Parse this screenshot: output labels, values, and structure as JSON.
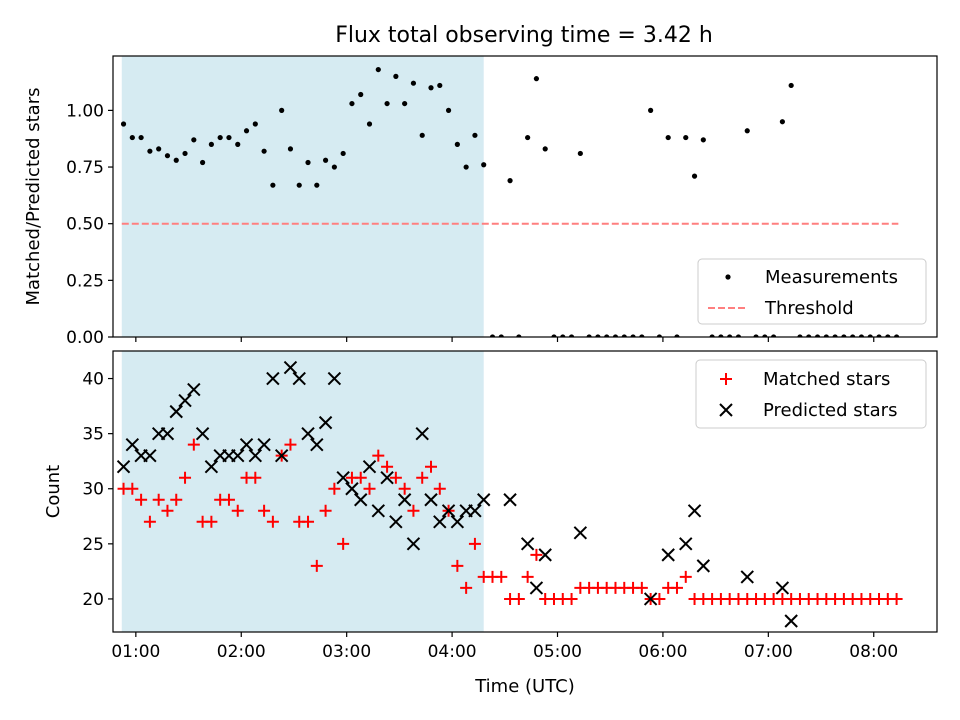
{
  "title": "Flux total observing time = 3.42 h",
  "colors": {
    "shade": "#add8e6",
    "measurement": "#000000",
    "threshold": "#ff7f7f",
    "matched": "#ff0000",
    "predicted": "#000000"
  },
  "chart_data": [
    {
      "type": "scatter",
      "name": "ratio-panel",
      "ylabel": "Matched/Predicted stars",
      "ylim": [
        0,
        1.24
      ],
      "yticks": [
        "0.00",
        "0.25",
        "0.50",
        "0.75",
        "1.00"
      ],
      "xlim": [
        "00:47",
        "08:36"
      ],
      "shaded_interval": [
        "00:52",
        "04:18"
      ],
      "threshold": 0.5,
      "threshold_span": [
        "00:52",
        "08:14"
      ],
      "legend": {
        "position": "lower right",
        "entries": [
          "Measurements",
          "Threshold"
        ]
      },
      "series": [
        {
          "name": "Measurements",
          "marker": "dot",
          "points": [
            [
              "00:53",
              0.94
            ],
            [
              "00:58",
              0.88
            ],
            [
              "01:03",
              0.88
            ],
            [
              "01:08",
              0.82
            ],
            [
              "01:13",
              0.83
            ],
            [
              "01:18",
              0.8
            ],
            [
              "01:23",
              0.78
            ],
            [
              "01:28",
              0.81
            ],
            [
              "01:33",
              0.87
            ],
            [
              "01:38",
              0.77
            ],
            [
              "01:43",
              0.85
            ],
            [
              "01:48",
              0.88
            ],
            [
              "01:53",
              0.88
            ],
            [
              "01:58",
              0.85
            ],
            [
              "02:03",
              0.91
            ],
            [
              "02:08",
              0.94
            ],
            [
              "02:13",
              0.82
            ],
            [
              "02:18",
              0.67
            ],
            [
              "02:23",
              1.0
            ],
            [
              "02:28",
              0.83
            ],
            [
              "02:33",
              0.67
            ],
            [
              "02:38",
              0.77
            ],
            [
              "02:43",
              0.67
            ],
            [
              "02:48",
              0.78
            ],
            [
              "02:53",
              0.75
            ],
            [
              "02:58",
              0.81
            ],
            [
              "03:03",
              1.03
            ],
            [
              "03:08",
              1.07
            ],
            [
              "03:13",
              0.94
            ],
            [
              "03:18",
              1.18
            ],
            [
              "03:23",
              1.03
            ],
            [
              "03:28",
              1.15
            ],
            [
              "03:33",
              1.03
            ],
            [
              "03:38",
              1.12
            ],
            [
              "03:43",
              0.89
            ],
            [
              "03:48",
              1.1
            ],
            [
              "03:53",
              1.11
            ],
            [
              "03:58",
              1.0
            ],
            [
              "04:03",
              0.85
            ],
            [
              "04:08",
              0.75
            ],
            [
              "04:13",
              0.89
            ],
            [
              "04:18",
              0.76
            ],
            [
              "04:23",
              0.0
            ],
            [
              "04:28",
              0.0
            ],
            [
              "04:33",
              0.69
            ],
            [
              "04:38",
              0.0
            ],
            [
              "04:43",
              0.88
            ],
            [
              "04:48",
              1.14
            ],
            [
              "04:53",
              0.83
            ],
            [
              "04:58",
              0.0
            ],
            [
              "05:03",
              0.0
            ],
            [
              "05:08",
              0.0
            ],
            [
              "05:13",
              0.81
            ],
            [
              "05:18",
              0.0
            ],
            [
              "05:23",
              0.0
            ],
            [
              "05:28",
              0.0
            ],
            [
              "05:33",
              0.0
            ],
            [
              "05:38",
              0.0
            ],
            [
              "05:43",
              0.0
            ],
            [
              "05:48",
              0.0
            ],
            [
              "05:53",
              1.0
            ],
            [
              "05:58",
              0.0
            ],
            [
              "06:03",
              0.88
            ],
            [
              "06:08",
              0.0
            ],
            [
              "06:13",
              0.88
            ],
            [
              "06:18",
              0.71
            ],
            [
              "06:23",
              0.87
            ],
            [
              "06:28",
              0.0
            ],
            [
              "06:33",
              0.0
            ],
            [
              "06:38",
              0.0
            ],
            [
              "06:43",
              0.0
            ],
            [
              "06:48",
              0.91
            ],
            [
              "06:53",
              0.0
            ],
            [
              "06:58",
              0.0
            ],
            [
              "07:03",
              0.0
            ],
            [
              "07:08",
              0.95
            ],
            [
              "07:13",
              1.11
            ],
            [
              "07:18",
              0.0
            ],
            [
              "07:23",
              0.0
            ],
            [
              "07:28",
              0.0
            ],
            [
              "07:33",
              0.0
            ],
            [
              "07:38",
              0.0
            ],
            [
              "07:43",
              0.0
            ],
            [
              "07:48",
              0.0
            ],
            [
              "07:53",
              0.0
            ],
            [
              "07:58",
              0.0
            ],
            [
              "08:03",
              0.0
            ],
            [
              "08:08",
              0.0
            ],
            [
              "08:13",
              0.0
            ]
          ]
        }
      ]
    },
    {
      "type": "scatter",
      "name": "count-panel",
      "xlabel": "Time (UTC)",
      "ylabel": "Count",
      "ylim": [
        17,
        42.5
      ],
      "yticks": [
        "20",
        "25",
        "30",
        "35",
        "40"
      ],
      "xlim": [
        "00:47",
        "08:36"
      ],
      "xticks": [
        "01:00",
        "02:00",
        "03:00",
        "04:00",
        "05:00",
        "06:00",
        "07:00",
        "08:00"
      ],
      "shaded_interval": [
        "00:52",
        "04:18"
      ],
      "legend": {
        "position": "upper right",
        "entries": [
          "Matched stars",
          "Predicted stars"
        ]
      },
      "series": [
        {
          "name": "Matched stars",
          "marker": "plus",
          "points": [
            [
              "00:53",
              30
            ],
            [
              "00:58",
              30
            ],
            [
              "01:03",
              29
            ],
            [
              "01:08",
              27
            ],
            [
              "01:13",
              29
            ],
            [
              "01:18",
              28
            ],
            [
              "01:23",
              29
            ],
            [
              "01:28",
              31
            ],
            [
              "01:33",
              34
            ],
            [
              "01:38",
              27
            ],
            [
              "01:43",
              27
            ],
            [
              "01:48",
              29
            ],
            [
              "01:53",
              29
            ],
            [
              "01:58",
              28
            ],
            [
              "02:03",
              31
            ],
            [
              "02:08",
              31
            ],
            [
              "02:13",
              28
            ],
            [
              "02:18",
              27
            ],
            [
              "02:23",
              33
            ],
            [
              "02:28",
              34
            ],
            [
              "02:33",
              27
            ],
            [
              "02:38",
              27
            ],
            [
              "02:43",
              23
            ],
            [
              "02:48",
              28
            ],
            [
              "02:53",
              30
            ],
            [
              "02:58",
              25
            ],
            [
              "03:03",
              31
            ],
            [
              "03:08",
              31
            ],
            [
              "03:13",
              30
            ],
            [
              "03:18",
              33
            ],
            [
              "03:23",
              32
            ],
            [
              "03:28",
              31
            ],
            [
              "03:33",
              30
            ],
            [
              "03:38",
              28
            ],
            [
              "03:43",
              31
            ],
            [
              "03:48",
              32
            ],
            [
              "03:53",
              30
            ],
            [
              "03:58",
              28
            ],
            [
              "04:03",
              23
            ],
            [
              "04:08",
              21
            ],
            [
              "04:13",
              25
            ],
            [
              "04:18",
              22
            ],
            [
              "04:23",
              22
            ],
            [
              "04:28",
              22
            ],
            [
              "04:33",
              20
            ],
            [
              "04:38",
              20
            ],
            [
              "04:43",
              22
            ],
            [
              "04:48",
              24
            ],
            [
              "04:53",
              20
            ],
            [
              "04:58",
              20
            ],
            [
              "05:03",
              20
            ],
            [
              "05:08",
              20
            ],
            [
              "05:13",
              21
            ],
            [
              "05:18",
              21
            ],
            [
              "05:23",
              21
            ],
            [
              "05:28",
              21
            ],
            [
              "05:33",
              21
            ],
            [
              "05:38",
              21
            ],
            [
              "05:43",
              21
            ],
            [
              "05:48",
              21
            ],
            [
              "05:53",
              20
            ],
            [
              "05:58",
              20
            ],
            [
              "06:03",
              21
            ],
            [
              "06:08",
              21
            ],
            [
              "06:13",
              22
            ],
            [
              "06:18",
              20
            ],
            [
              "06:23",
              20
            ],
            [
              "06:28",
              20
            ],
            [
              "06:33",
              20
            ],
            [
              "06:38",
              20
            ],
            [
              "06:43",
              20
            ],
            [
              "06:48",
              20
            ],
            [
              "06:53",
              20
            ],
            [
              "06:58",
              20
            ],
            [
              "07:03",
              20
            ],
            [
              "07:08",
              20
            ],
            [
              "07:13",
              20
            ],
            [
              "07:18",
              20
            ],
            [
              "07:23",
              20
            ],
            [
              "07:28",
              20
            ],
            [
              "07:33",
              20
            ],
            [
              "07:38",
              20
            ],
            [
              "07:43",
              20
            ],
            [
              "07:48",
              20
            ],
            [
              "07:53",
              20
            ],
            [
              "07:58",
              20
            ],
            [
              "08:03",
              20
            ],
            [
              "08:08",
              20
            ],
            [
              "08:13",
              20
            ]
          ]
        },
        {
          "name": "Predicted stars",
          "marker": "x",
          "points": [
            [
              "00:53",
              32
            ],
            [
              "00:58",
              34
            ],
            [
              "01:03",
              33
            ],
            [
              "01:08",
              33
            ],
            [
              "01:13",
              35
            ],
            [
              "01:18",
              35
            ],
            [
              "01:23",
              37
            ],
            [
              "01:28",
              38
            ],
            [
              "01:33",
              39
            ],
            [
              "01:38",
              35
            ],
            [
              "01:43",
              32
            ],
            [
              "01:48",
              33
            ],
            [
              "01:53",
              33
            ],
            [
              "01:58",
              33
            ],
            [
              "02:03",
              34
            ],
            [
              "02:08",
              33
            ],
            [
              "02:13",
              34
            ],
            [
              "02:18",
              40
            ],
            [
              "02:23",
              33
            ],
            [
              "02:28",
              41
            ],
            [
              "02:33",
              40
            ],
            [
              "02:38",
              35
            ],
            [
              "02:43",
              34
            ],
            [
              "02:48",
              36
            ],
            [
              "02:53",
              40
            ],
            [
              "02:58",
              31
            ],
            [
              "03:03",
              30
            ],
            [
              "03:08",
              29
            ],
            [
              "03:13",
              32
            ],
            [
              "03:18",
              28
            ],
            [
              "03:23",
              31
            ],
            [
              "03:28",
              27
            ],
            [
              "03:33",
              29
            ],
            [
              "03:38",
              25
            ],
            [
              "03:43",
              35
            ],
            [
              "03:48",
              29
            ],
            [
              "03:53",
              27
            ],
            [
              "03:58",
              28
            ],
            [
              "04:03",
              27
            ],
            [
              "04:08",
              28
            ],
            [
              "04:13",
              28
            ],
            [
              "04:18",
              29
            ],
            [
              "04:33",
              29
            ],
            [
              "04:43",
              25
            ],
            [
              "04:48",
              21
            ],
            [
              "04:53",
              24
            ],
            [
              "05:13",
              26
            ],
            [
              "05:53",
              20
            ],
            [
              "06:03",
              24
            ],
            [
              "06:13",
              25
            ],
            [
              "06:18",
              28
            ],
            [
              "06:23",
              23
            ],
            [
              "06:48",
              22
            ],
            [
              "07:08",
              21
            ],
            [
              "07:13",
              18
            ]
          ]
        }
      ]
    }
  ]
}
